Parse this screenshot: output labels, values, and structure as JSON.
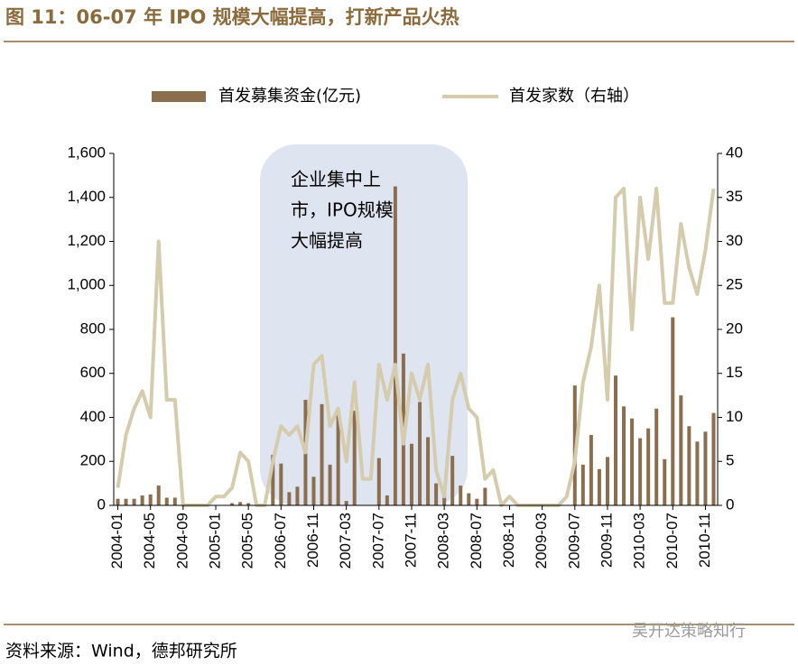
{
  "chart_data": {
    "type": "bar_line",
    "title": "图 11：06-07 年 IPO 规模大幅提高，打新产品火热",
    "annotation": [
      "企业集中上",
      "市，IPO规模",
      "大幅提高"
    ],
    "source": "资料来源：Wind，德邦研究所",
    "watermark": "吴开达策略知行",
    "categories": [
      "2004-01",
      null,
      null,
      null,
      "2004-05",
      null,
      null,
      null,
      "2004-09",
      null,
      null,
      null,
      "2005-01",
      null,
      null,
      null,
      "2005-05",
      null,
      null,
      null,
      "2006-07",
      null,
      null,
      null,
      "2006-11",
      null,
      null,
      null,
      "2007-03",
      null,
      null,
      null,
      "2007-07",
      null,
      null,
      null,
      "2007-11",
      null,
      null,
      null,
      "2008-03",
      null,
      null,
      null,
      "2008-07",
      null,
      null,
      null,
      "2008-11",
      null,
      null,
      null,
      "2009-03",
      null,
      null,
      null,
      "2009-07",
      null,
      null,
      null,
      "2009-11",
      null,
      null,
      null,
      "2010-03",
      null,
      null,
      null,
      "2010-07",
      null,
      null,
      null,
      "2010-11",
      null
    ],
    "series": [
      {
        "name": "首发募集资金(亿元)",
        "kind": "bar",
        "color": "#8b6e4e",
        "values": [
          30,
          30,
          30,
          45,
          50,
          90,
          35,
          35,
          0,
          0,
          0,
          0,
          0,
          0,
          10,
          15,
          10,
          0,
          0,
          230,
          190,
          60,
          85,
          480,
          130,
          460,
          185,
          430,
          20,
          430,
          0,
          0,
          215,
          45,
          1450,
          690,
          280,
          470,
          310,
          100,
          50,
          225,
          90,
          55,
          30,
          80,
          0,
          0,
          0,
          0,
          0,
          0,
          0,
          0,
          0,
          0,
          545,
          185,
          320,
          165,
          220,
          590,
          450,
          395,
          305,
          350,
          440,
          210,
          855,
          500,
          360,
          290,
          335,
          420
        ]
      },
      {
        "name": "首发家数（右轴）",
        "kind": "line",
        "axis": "y2",
        "color": "#d5cbad",
        "values": [
          2,
          8,
          11,
          13,
          10,
          30,
          12,
          12,
          0,
          0,
          0,
          0,
          1,
          1,
          2,
          6,
          5,
          0,
          0,
          5,
          9,
          8,
          9,
          6,
          16,
          17,
          9,
          11,
          5,
          14,
          3,
          3,
          16,
          12,
          16,
          7,
          15,
          12,
          16,
          4,
          1,
          12,
          15,
          11,
          10,
          3,
          4,
          0,
          1,
          0,
          0,
          0,
          0,
          0,
          0,
          1,
          5,
          14,
          18,
          25,
          12,
          35,
          36,
          20,
          35,
          28,
          36,
          23,
          23,
          32,
          27,
          24,
          29,
          36
        ]
      }
    ],
    "ylim": [
      0,
      1600
    ],
    "yticks": [
      0,
      200,
      400,
      600,
      800,
      {
        "value": 1000,
        "label": "1,000"
      },
      {
        "value": 1200,
        "label": "1,200"
      },
      {
        "value": 1400,
        "label": "1,400"
      },
      {
        "value": 1600,
        "label": "1,600"
      }
    ],
    "y2lim": [
      0,
      40
    ],
    "y2ticks": [
      0,
      5,
      10,
      15,
      20,
      25,
      30,
      35,
      40
    ]
  }
}
